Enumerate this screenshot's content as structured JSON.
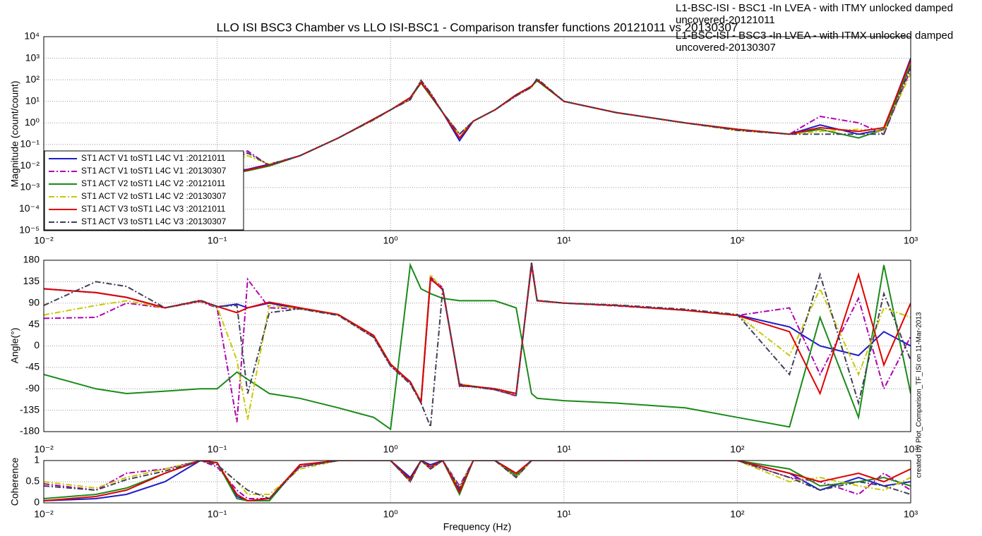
{
  "chart_data": [
    {
      "type": "line",
      "title": "LLO ISI BSC3 Chamber vs LLO ISI-BSC1 - Comparison transfer functions 20121011 vs 20130307",
      "annotations": [
        "L1-BSC-ISI - BSC1 -In LVEA - with ITMY unlocked damped uncovered-20121011",
        "L1-BSC-ISI - BSC3 -In LVEA - with ITMX unlocked damped uncovered-20130307"
      ],
      "ylabel": "Magnitude (count/count)",
      "xlog": true,
      "ylog": true,
      "grid": true,
      "legend": "lower left",
      "xlim": [
        0.01,
        1000
      ],
      "ylim": [
        1e-05,
        10000
      ],
      "xticks": [
        {
          "value": 0.01,
          "label": "10⁻²"
        },
        {
          "value": 0.1,
          "label": "10⁻¹"
        },
        {
          "value": 1,
          "label": "10⁰"
        },
        {
          "value": 10,
          "label": "10¹"
        },
        {
          "value": 100,
          "label": "10²"
        },
        {
          "value": 1000,
          "label": "10³"
        }
      ],
      "yticks": [
        {
          "value": 1e-05,
          "label": "10⁻⁵"
        },
        {
          "value": 0.0001,
          "label": "10⁻⁴"
        },
        {
          "value": 0.001,
          "label": "10⁻³"
        },
        {
          "value": 0.01,
          "label": "10⁻²"
        },
        {
          "value": 0.1,
          "label": "10⁻¹"
        },
        {
          "value": 1,
          "label": "10⁰"
        },
        {
          "value": 10,
          "label": "10¹"
        },
        {
          "value": 100,
          "label": "10²"
        },
        {
          "value": 1000,
          "label": "10³"
        },
        {
          "value": 10000,
          "label": "10⁴"
        }
      ],
      "x": [
        0.01,
        0.02,
        0.03,
        0.05,
        0.08,
        0.1,
        0.13,
        0.15,
        0.2,
        0.3,
        0.5,
        0.8,
        1,
        1.3,
        1.5,
        1.7,
        2,
        2.5,
        3,
        4,
        5.3,
        6.5,
        7,
        10,
        20,
        50,
        100,
        200,
        300,
        500,
        700,
        1000
      ],
      "series": [
        {
          "name": "ST1 ACT V1 toST1 L4C V1 :20121011",
          "color": "#1c1cc8",
          "linestyle": "solid",
          "values": [
            2e-05,
            6e-05,
            0.00015,
            0.0005,
            0.002,
            0.003,
            0.006,
            0.007,
            0.012,
            0.03,
            0.2,
            1.5,
            4,
            15,
            80,
            20,
            3,
            0.15,
            1.2,
            4,
            20,
            50,
            100,
            10,
            3,
            1,
            0.5,
            0.3,
            0.8,
            0.3,
            0.5,
            1000
          ]
        },
        {
          "name": "ST1 ACT V1 toST1 L4C V1 :20130307",
          "color": "#b000b0",
          "linestyle": "dashdot",
          "values": [
            3e-05,
            0.0001,
            0.0003,
            0.001,
            0.005,
            0.01,
            0.03,
            0.05,
            0.01,
            0.03,
            0.2,
            1.4,
            4,
            12,
            90,
            25,
            3,
            0.3,
            1.2,
            4,
            18,
            45,
            110,
            10,
            3,
            1,
            0.45,
            0.3,
            2,
            1,
            0.3,
            300
          ]
        },
        {
          "name": "ST1 ACT V2 toST1 L4C V2 :20121011",
          "color": "#1a8a1a",
          "linestyle": "solid",
          "values": [
            1.5e-05,
            5e-05,
            0.00012,
            0.0004,
            0.0015,
            0.0025,
            0.005,
            0.006,
            0.01,
            0.03,
            0.2,
            1.5,
            4,
            14,
            70,
            18,
            3,
            0.2,
            1.2,
            4,
            20,
            50,
            90,
            10,
            3,
            1,
            0.5,
            0.3,
            0.5,
            0.2,
            0.5,
            500
          ]
        },
        {
          "name": "ST1 ACT V2 toST1 L4C V2 :20130307",
          "color": "#c8c800",
          "linestyle": "dashdot",
          "values": [
            2e-05,
            8e-05,
            0.0002,
            0.0008,
            0.003,
            0.008,
            0.02,
            0.03,
            0.012,
            0.03,
            0.2,
            1.4,
            4,
            13,
            85,
            22,
            3,
            0.3,
            1.2,
            4,
            19,
            45,
            105,
            10,
            3,
            1,
            0.45,
            0.3,
            0.4,
            0.5,
            0.4,
            200
          ]
        },
        {
          "name": "ST1 ACT V3 toST1 L4C V3 :20121011",
          "color": "#e00000",
          "linestyle": "solid",
          "values": [
            1e-05,
            5e-05,
            0.00013,
            0.00045,
            0.0018,
            0.0028,
            0.0055,
            0.0065,
            0.011,
            0.03,
            0.2,
            1.5,
            4,
            15,
            75,
            20,
            3,
            0.2,
            1.2,
            4,
            20,
            50,
            100,
            10,
            3,
            1,
            0.5,
            0.3,
            0.6,
            0.4,
            0.6,
            800
          ]
        },
        {
          "name": "ST1 ACT V3 toST1 L4C V3 :20130307",
          "color": "#404058",
          "linestyle": "dashdot",
          "values": [
            2.5e-05,
            9e-05,
            0.00025,
            0.0009,
            0.004,
            0.009,
            0.025,
            0.04,
            0.011,
            0.03,
            0.2,
            1.4,
            4,
            12,
            95,
            24,
            3,
            0.3,
            1.2,
            4,
            18,
            45,
            115,
            10,
            3,
            1,
            0.45,
            0.3,
            0.3,
            0.3,
            0.3,
            400
          ]
        }
      ]
    },
    {
      "type": "line",
      "ylabel": "Angle(°)",
      "xlog": true,
      "grid": true,
      "xlim": [
        0.01,
        1000
      ],
      "ylim": [
        -180,
        180
      ],
      "xticks": [
        {
          "value": 0.01,
          "label": "10⁻²"
        },
        {
          "value": 0.1,
          "label": "10⁻¹"
        },
        {
          "value": 1,
          "label": "10⁰"
        },
        {
          "value": 10,
          "label": "10¹"
        },
        {
          "value": 100,
          "label": "10²"
        },
        {
          "value": 1000,
          "label": "10³"
        }
      ],
      "yticks": [
        -180,
        -135,
        -90,
        -45,
        0,
        45,
        90,
        135,
        180
      ],
      "x": [
        0.01,
        0.02,
        0.03,
        0.05,
        0.08,
        0.1,
        0.13,
        0.15,
        0.2,
        0.3,
        0.5,
        0.8,
        1,
        1.3,
        1.5,
        1.7,
        2,
        2.5,
        3,
        4,
        5.3,
        6.5,
        7,
        10,
        20,
        50,
        100,
        200,
        300,
        500,
        700,
        1000
      ],
      "series": [
        {
          "color": "#1c1cc8",
          "linestyle": "solid",
          "values": [
            120,
            112,
            102,
            80,
            95,
            82,
            88,
            80,
            90,
            78,
            65,
            20,
            -40,
            -75,
            -120,
            140,
            120,
            -80,
            -85,
            -90,
            -100,
            170,
            95,
            90,
            85,
            75,
            65,
            40,
            0,
            -20,
            30,
            0
          ]
        },
        {
          "color": "#b000b0",
          "linestyle": "dashdot",
          "values": [
            58,
            60,
            90,
            80,
            93,
            80,
            -160,
            140,
            80,
            78,
            65,
            18,
            -42,
            -78,
            -118,
            145,
            122,
            -85,
            -85,
            -92,
            -105,
            175,
            95,
            90,
            84,
            75,
            64,
            80,
            -60,
            100,
            -90,
            20
          ]
        },
        {
          "color": "#1a8a1a",
          "linestyle": "solid",
          "values": [
            -60,
            -90,
            -100,
            -95,
            -90,
            -90,
            -55,
            -70,
            -100,
            -110,
            -130,
            -150,
            -175,
            170,
            120,
            110,
            100,
            95,
            95,
            95,
            80,
            -100,
            -110,
            -115,
            -120,
            -130,
            -150,
            -170,
            60,
            -150,
            170,
            -100
          ]
        },
        {
          "color": "#c8c800",
          "linestyle": "dashdot",
          "values": [
            65,
            85,
            95,
            80,
            94,
            82,
            -30,
            -155,
            85,
            78,
            65,
            20,
            -40,
            -76,
            -115,
            150,
            118,
            -80,
            -84,
            -91,
            -102,
            172,
            95,
            90,
            85,
            75,
            65,
            -20,
            120,
            -60,
            80,
            60
          ]
        },
        {
          "color": "#e00000",
          "linestyle": "solid",
          "values": [
            120,
            112,
            102,
            80,
            95,
            83,
            70,
            80,
            92,
            80,
            66,
            22,
            -38,
            -76,
            -118,
            142,
            118,
            -82,
            -85,
            -90,
            -100,
            170,
            95,
            90,
            85,
            75,
            64,
            30,
            -100,
            150,
            -40,
            90
          ]
        },
        {
          "color": "#404058",
          "linestyle": "dashdot",
          "values": [
            85,
            135,
            125,
            80,
            96,
            83,
            85,
            -100,
            70,
            78,
            64,
            18,
            -42,
            -80,
            -120,
            -170,
            120,
            -84,
            -86,
            -92,
            -104,
            176,
            96,
            90,
            86,
            77,
            66,
            -60,
            150,
            -120,
            110,
            -30
          ]
        }
      ]
    },
    {
      "type": "line",
      "ylabel": "Coherence",
      "xlabel": "Frequency (Hz)",
      "annotations": [
        "created by Plot_Comparison_TF_ISI on 11-Mar-2013"
      ],
      "xlog": true,
      "grid": true,
      "xlim": [
        0.01,
        1000
      ],
      "ylim": [
        0,
        1
      ],
      "xticks": [
        {
          "value": 0.01,
          "label": "10⁻²"
        },
        {
          "value": 0.1,
          "label": "10⁻¹"
        },
        {
          "value": 1,
          "label": "10⁰"
        },
        {
          "value": 10,
          "label": "10¹"
        },
        {
          "value": 100,
          "label": "10²"
        },
        {
          "value": 1000,
          "label": "10³"
        }
      ],
      "yticks": [
        0,
        0.5,
        1
      ],
      "x": [
        0.01,
        0.02,
        0.03,
        0.05,
        0.08,
        0.1,
        0.13,
        0.15,
        0.2,
        0.3,
        0.5,
        0.8,
        1,
        1.3,
        1.5,
        1.7,
        2,
        2.5,
        3,
        4,
        5.3,
        6.5,
        7,
        10,
        20,
        50,
        100,
        200,
        300,
        500,
        700,
        1000
      ],
      "series": [
        {
          "color": "#1c1cc8",
          "linestyle": "solid",
          "values": [
            0.05,
            0.1,
            0.2,
            0.5,
            1,
            0.95,
            0.15,
            0.05,
            0.05,
            0.9,
            1,
            1,
            1,
            0.6,
            1,
            0.9,
            1,
            0.3,
            1,
            1,
            0.7,
            1,
            1,
            1,
            1,
            1,
            1,
            0.7,
            0.3,
            0.6,
            0.4,
            0.5
          ]
        },
        {
          "color": "#b000b0",
          "linestyle": "dashdot",
          "values": [
            0.45,
            0.3,
            0.7,
            0.8,
            1,
            0.85,
            0.3,
            0.1,
            0.1,
            0.85,
            1,
            1,
            1,
            0.5,
            1,
            0.8,
            1,
            0.4,
            1,
            1,
            0.6,
            1,
            1,
            1,
            1,
            1,
            1,
            0.6,
            0.5,
            0.2,
            0.7,
            0.3
          ]
        },
        {
          "color": "#1a8a1a",
          "linestyle": "solid",
          "values": [
            0.1,
            0.2,
            0.35,
            0.7,
            1,
            0.95,
            0.1,
            0.05,
            0.05,
            0.9,
            1,
            1,
            1,
            0.55,
            1,
            0.85,
            1,
            0.2,
            1,
            1,
            0.65,
            1,
            1,
            1,
            1,
            1,
            1,
            0.8,
            0.4,
            0.5,
            0.6,
            0.4
          ]
        },
        {
          "color": "#c8c800",
          "linestyle": "dashdot",
          "values": [
            0.5,
            0.35,
            0.6,
            0.8,
            1,
            0.9,
            0.5,
            0.2,
            0.2,
            0.8,
            1,
            1,
            1,
            0.5,
            1,
            0.8,
            1,
            0.35,
            1,
            1,
            0.6,
            1,
            1,
            1,
            1,
            1,
            1,
            0.5,
            0.6,
            0.4,
            0.3,
            0.6
          ]
        },
        {
          "color": "#e00000",
          "linestyle": "solid",
          "values": [
            0.05,
            0.15,
            0.3,
            0.7,
            1,
            0.95,
            0.2,
            0.05,
            0.1,
            0.9,
            1,
            1,
            1,
            0.55,
            1,
            0.85,
            1,
            0.25,
            1,
            1,
            0.7,
            1,
            1,
            1,
            1,
            1,
            1,
            0.7,
            0.5,
            0.7,
            0.5,
            0.8
          ]
        },
        {
          "color": "#404058",
          "linestyle": "dashdot",
          "values": [
            0.4,
            0.3,
            0.55,
            0.75,
            1,
            0.9,
            0.5,
            0.3,
            0.1,
            0.85,
            1,
            1,
            1,
            0.5,
            1,
            0.8,
            1,
            0.35,
            1,
            1,
            0.6,
            1,
            1,
            1,
            1,
            1,
            1,
            0.6,
            0.3,
            0.5,
            0.4,
            0.2
          ]
        }
      ]
    }
  ]
}
